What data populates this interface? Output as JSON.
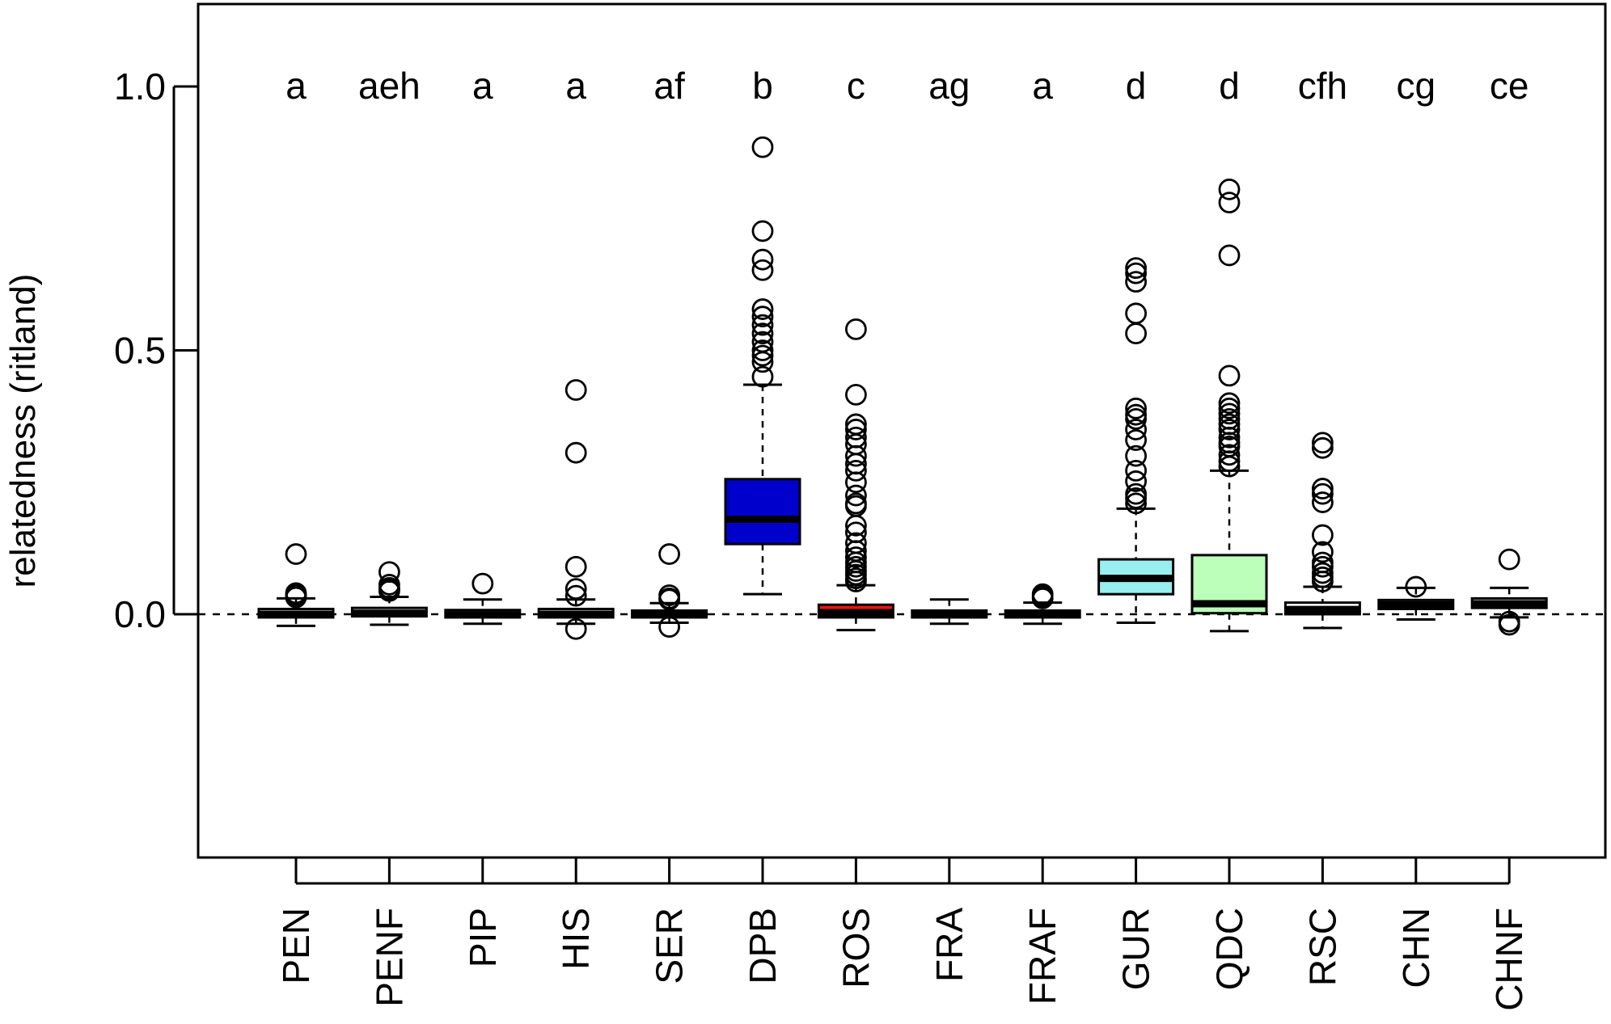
{
  "chart_data": {
    "type": "boxplot",
    "ylabel": "relatedness (ritland)",
    "xlabel": "",
    "ylim": [
      -0.46,
      1.16
    ],
    "yticks": [
      0.0,
      0.5,
      1.0
    ],
    "ytick_labels": [
      "0.0",
      "0.5",
      "1.0"
    ],
    "reference_line": 0.0,
    "categories": [
      "PEN",
      "PENF",
      "PIP",
      "HIS",
      "SER",
      "DPB",
      "ROS",
      "FRA",
      "FRAF",
      "GUR",
      "QDC",
      "RSC",
      "CHN",
      "CHNF"
    ],
    "letters": [
      "a",
      "aeh",
      "a",
      "a",
      "af",
      "b",
      "c",
      "ag",
      "a",
      "d",
      "d",
      "cfh",
      "cg",
      "ce"
    ],
    "boxes": [
      {
        "name": "PEN",
        "color": "#ffffff",
        "whisker_low": -0.022,
        "q1": -0.006,
        "median": 0.0,
        "q3": 0.01,
        "whisker_high": 0.03,
        "outliers": [
          0.114,
          0.04,
          0.036,
          0.032
        ]
      },
      {
        "name": "PENF",
        "color": "#ffffff",
        "whisker_low": -0.02,
        "q1": -0.004,
        "median": 0.002,
        "q3": 0.012,
        "whisker_high": 0.033,
        "outliers": [
          0.08,
          0.056,
          0.05,
          0.047,
          0.044
        ]
      },
      {
        "name": "PIP",
        "color": "#ffffff",
        "whisker_low": -0.018,
        "q1": -0.006,
        "median": -0.001,
        "q3": 0.008,
        "whisker_high": 0.028,
        "outliers": [
          0.058
        ]
      },
      {
        "name": "HIS",
        "color": "#ffffff",
        "whisker_low": -0.018,
        "q1": -0.006,
        "median": 0.0,
        "q3": 0.01,
        "whisker_high": 0.028,
        "outliers": [
          0.425,
          0.306,
          0.09,
          0.048,
          0.035,
          -0.028
        ]
      },
      {
        "name": "SER",
        "color": "#ffffff",
        "whisker_low": -0.016,
        "q1": -0.006,
        "median": -0.001,
        "q3": 0.007,
        "whisker_high": 0.021,
        "outliers": [
          0.114,
          0.036,
          0.03,
          0.028,
          -0.024
        ]
      },
      {
        "name": "DPB",
        "color": "#0000cd",
        "whisker_low": 0.038,
        "q1": 0.133,
        "median": 0.18,
        "q3": 0.256,
        "whisker_high": 0.435,
        "outliers": [
          0.885,
          0.726,
          0.672,
          0.652,
          0.578,
          0.564,
          0.548,
          0.532,
          0.516,
          0.5,
          0.49,
          0.478,
          0.45
        ]
      },
      {
        "name": "ROS",
        "color": "#ee1111",
        "whisker_low": -0.03,
        "q1": -0.006,
        "median": 0.003,
        "q3": 0.018,
        "whisker_high": 0.055,
        "outliers": [
          0.54,
          0.416,
          0.36,
          0.35,
          0.335,
          0.322,
          0.3,
          0.285,
          0.272,
          0.25,
          0.225,
          0.21,
          0.205,
          0.168,
          0.155,
          0.135,
          0.12,
          0.108,
          0.098,
          0.09,
          0.082,
          0.075,
          0.068,
          0.062
        ]
      },
      {
        "name": "FRA",
        "color": "#ffffff",
        "whisker_low": -0.018,
        "q1": -0.006,
        "median": -0.001,
        "q3": 0.007,
        "whisker_high": 0.028,
        "outliers": []
      },
      {
        "name": "FRAF",
        "color": "#ffffff",
        "whisker_low": -0.018,
        "q1": -0.006,
        "median": -0.001,
        "q3": 0.007,
        "whisker_high": 0.022,
        "outliers": [
          0.038,
          0.034,
          0.03
        ]
      },
      {
        "name": "GUR",
        "color": "#99eef0",
        "whisker_low": -0.016,
        "q1": 0.038,
        "median": 0.068,
        "q3": 0.104,
        "whisker_high": 0.2,
        "outliers": [
          0.656,
          0.646,
          0.63,
          0.57,
          0.532,
          0.39,
          0.378,
          0.37,
          0.35,
          0.33,
          0.3,
          0.272,
          0.252,
          0.228,
          0.22,
          0.21
        ]
      },
      {
        "name": "QDC",
        "color": "#bbffbb",
        "whisker_low": -0.032,
        "q1": 0.002,
        "median": 0.02,
        "q3": 0.112,
        "whisker_high": 0.272,
        "outliers": [
          0.805,
          0.78,
          0.68,
          0.452,
          0.4,
          0.39,
          0.38,
          0.37,
          0.36,
          0.35,
          0.335,
          0.325,
          0.318,
          0.302,
          0.29,
          0.28
        ]
      },
      {
        "name": "RSC",
        "color": "#ffffff",
        "whisker_low": -0.026,
        "q1": 0.0,
        "median": 0.009,
        "q3": 0.022,
        "whisker_high": 0.052,
        "outliers": [
          0.325,
          0.315,
          0.238,
          0.228,
          0.212,
          0.15,
          0.118,
          0.098,
          0.09,
          0.078,
          0.07,
          0.062
        ]
      },
      {
        "name": "CHN",
        "color": "#ffffff",
        "whisker_low": -0.01,
        "q1": 0.01,
        "median": 0.018,
        "q3": 0.027,
        "whisker_high": 0.05,
        "outliers": [
          0.052
        ]
      },
      {
        "name": "CHNF",
        "color": "#ffffff",
        "whisker_low": -0.006,
        "q1": 0.012,
        "median": 0.02,
        "q3": 0.03,
        "whisker_high": 0.05,
        "outliers": [
          0.104,
          -0.014,
          -0.02
        ]
      }
    ]
  }
}
